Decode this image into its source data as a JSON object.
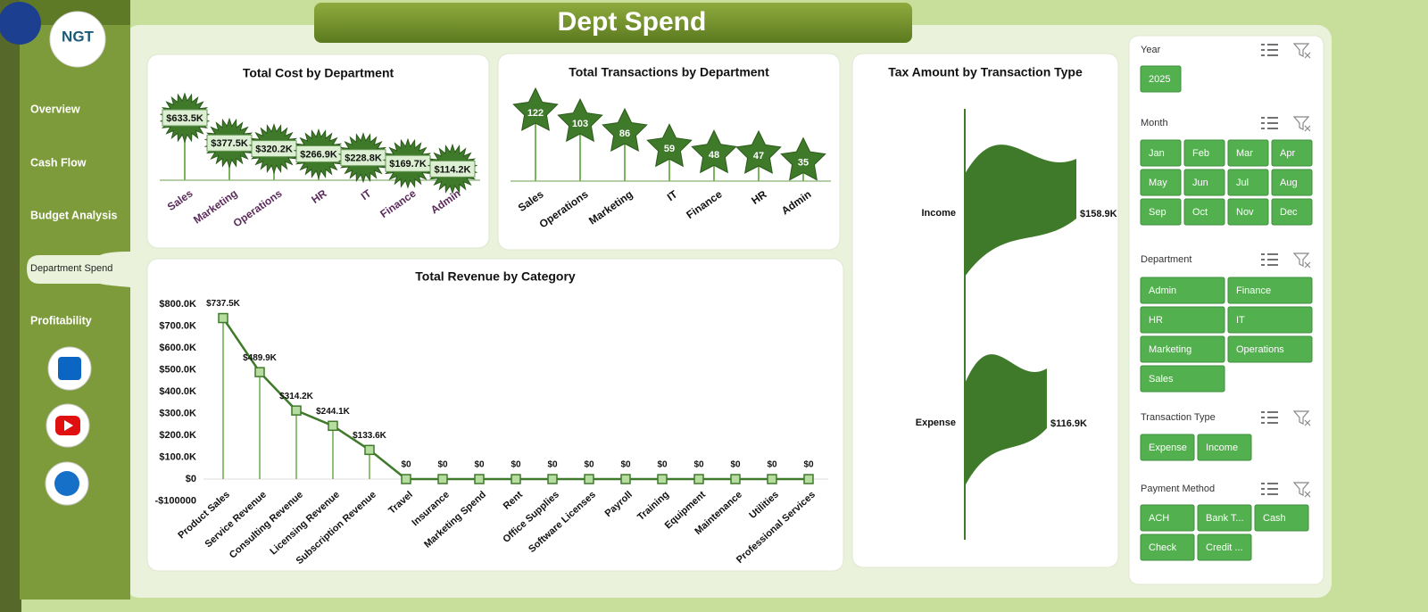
{
  "header": {
    "title": "Dept Spend"
  },
  "sidebar": {
    "logo": "NGT",
    "nav": [
      "Overview",
      "Cash Flow",
      "Budget Analysis",
      "Department Spend",
      "Profitability"
    ]
  },
  "chart_data": [
    {
      "type": "lollipop",
      "marker": "burst",
      "title": "Total Cost by Department",
      "color": "#3f7a2a",
      "categories": [
        "Sales",
        "Marketing",
        "Operations",
        "HR",
        "IT",
        "Finance",
        "Admin"
      ],
      "values": [
        633.5,
        377.5,
        320.2,
        266.9,
        228.8,
        169.7,
        114.2
      ],
      "value_labels": [
        "$633.5K",
        "$377.5K",
        "$320.2K",
        "$266.9K",
        "$228.8K",
        "$169.7K",
        "$114.2K"
      ]
    },
    {
      "type": "lollipop",
      "marker": "star",
      "title": "Total Transactions by Department",
      "color": "#3f7a2a",
      "categories": [
        "Sales",
        "Operations",
        "Marketing",
        "IT",
        "Finance",
        "HR",
        "Admin"
      ],
      "values": [
        122,
        103,
        86,
        59,
        48,
        47,
        35
      ]
    },
    {
      "type": "line",
      "title": "Total Revenue by Category",
      "color": "#3f7a2a",
      "categories": [
        "Product Sales",
        "Service Revenue",
        "Consulting Revenue",
        "Licensing Revenue",
        "Subscription Revenue",
        "Travel",
        "Insurance",
        "Marketing Spend",
        "Rent",
        "Office Supplies",
        "Software Licenses",
        "Payroll",
        "Training",
        "Equipment",
        "Maintenance",
        "Utilities",
        "Professional Services"
      ],
      "values": [
        737500,
        489900,
        314200,
        244100,
        133600,
        0,
        0,
        0,
        0,
        0,
        0,
        0,
        0,
        0,
        0,
        0,
        0
      ],
      "value_labels": [
        "$737.5K",
        "$489.9K",
        "$314.2K",
        "$244.1K",
        "$133.6K",
        "$0",
        "$0",
        "$0",
        "$0",
        "$0",
        "$0",
        "$0",
        "$0",
        "$0",
        "$0",
        "$0",
        "$0"
      ],
      "ylim": [
        -100000,
        850000
      ],
      "yticks": [
        {
          "value": -100000,
          "label": "-$100000"
        },
        {
          "value": 0,
          "label": "$0"
        },
        {
          "value": 100000,
          "label": "$100.0K"
        },
        {
          "value": 200000,
          "label": "$200.0K"
        },
        {
          "value": 300000,
          "label": "$300.0K"
        },
        {
          "value": 400000,
          "label": "$400.0K"
        },
        {
          "value": 500000,
          "label": "$500.0K"
        },
        {
          "value": 600000,
          "label": "$600.0K"
        },
        {
          "value": 700000,
          "label": "$700.0K"
        },
        {
          "value": 800000,
          "label": "$800.0K"
        }
      ]
    },
    {
      "type": "barh",
      "title": "Tax Amount by Transaction Type",
      "color": "#3f7a2a",
      "categories": [
        "Income",
        "Expense"
      ],
      "values": [
        158.9,
        116.9
      ],
      "value_labels": [
        "$158.9K",
        "$116.9K"
      ]
    }
  ],
  "slicers": [
    {
      "title": "Year",
      "items": [
        "2025"
      ]
    },
    {
      "title": "Month",
      "items": [
        "Jan",
        "Feb",
        "Mar",
        "Apr",
        "May",
        "Jun",
        "Jul",
        "Aug",
        "Sep",
        "Oct",
        "Nov",
        "Dec"
      ]
    },
    {
      "title": "Department",
      "items": [
        "Admin",
        "Finance",
        "HR",
        "IT",
        "Marketing",
        "Operations",
        "Sales"
      ]
    },
    {
      "title": "Transaction Type",
      "items": [
        "Expense",
        "Income"
      ]
    },
    {
      "title": "Payment Method",
      "items": [
        "ACH",
        "Bank T...",
        "Cash",
        "Check",
        "Credit ..."
      ]
    }
  ]
}
